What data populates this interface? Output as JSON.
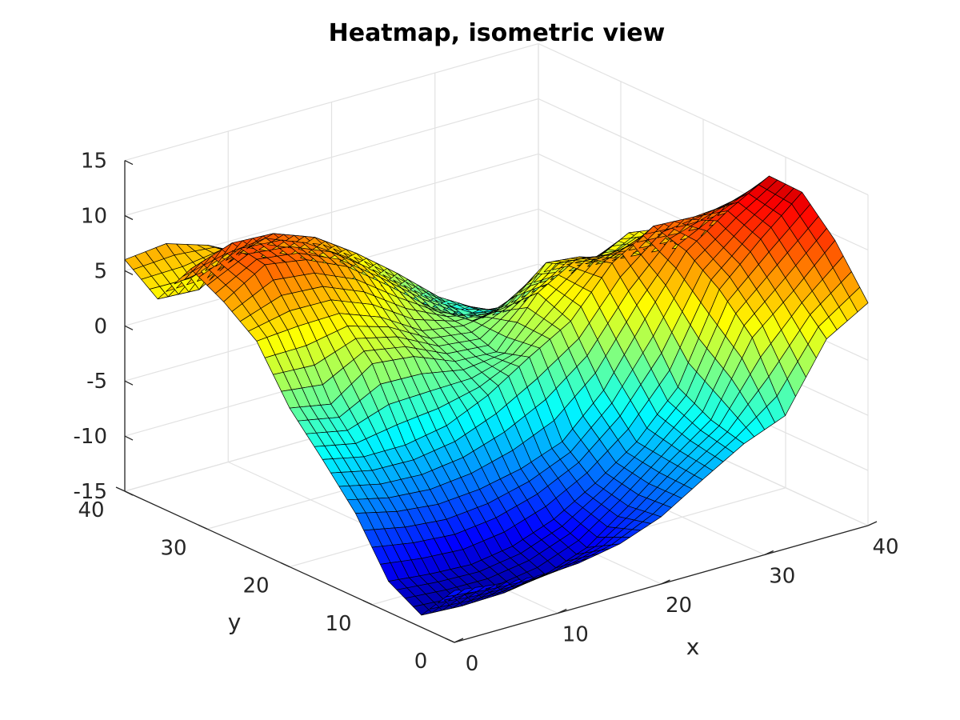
{
  "chart_data": {
    "type": "surface",
    "title": "Heatmap, isometric view",
    "xlabel": "x",
    "ylabel": "y",
    "zlabel": "",
    "xlim": [
      0,
      40
    ],
    "ylim": [
      0,
      40
    ],
    "zlim": [
      -15,
      15
    ],
    "xticks": [
      "0",
      "10",
      "20",
      "30",
      "40"
    ],
    "yticks": [
      "0",
      "10",
      "20",
      "30",
      "40"
    ],
    "zticks": [
      "-15",
      "-10",
      "-5",
      "0",
      "5",
      "10",
      "15"
    ],
    "colormap": "jet",
    "grid": true,
    "view": "isometric",
    "grid_step": 4,
    "x": [
      0,
      4,
      8,
      12,
      16,
      20,
      24,
      28,
      32,
      36,
      40
    ],
    "y": [
      0,
      4,
      8,
      12,
      16,
      20,
      24,
      28,
      32,
      36,
      40
    ],
    "z": [
      [
        -10.3,
        -10.8,
        -11.1,
        -11.0,
        -10.3,
        -8.9,
        -6.6,
        -4.4,
        -2.9,
        3.0,
        5.2
      ],
      [
        -13.9,
        -14.1,
        -14.0,
        -13.4,
        -12.0,
        -9.3,
        -6.3,
        -3.6,
        2.8,
        6.0,
        9.5
      ],
      [
        -12.2,
        -12.6,
        -12.8,
        -12.2,
        -10.8,
        -8.6,
        -5.9,
        -2.0,
        5.8,
        9.3,
        12.5
      ],
      [
        -7.4,
        -8.3,
        -8.7,
        -8.4,
        -7.6,
        -6.2,
        -2.6,
        2.8,
        7.9,
        10.5,
        12.6
      ],
      [
        -3.9,
        -4.7,
        -4.7,
        -4.0,
        -2.3,
        0.1,
        2.3,
        6.5,
        8.8,
        8.6,
        8.9
      ],
      [
        -0.6,
        -1.3,
        1.3,
        0.9,
        -0.6,
        -0.8,
        3.5,
        5.7,
        4.5,
        4.2,
        3.6
      ],
      [
        4.1,
        4.4,
        4.5,
        3.1,
        0.8,
        0.2,
        0.8,
        3.8,
        2.4,
        4.4,
        3.8
      ],
      [
        6.3,
        8.6,
        8.0,
        6.3,
        3.5,
        0.5,
        -1.8,
        -1.8,
        -0.2,
        0.6,
        0.2
      ],
      [
        7.9,
        9.2,
        9.0,
        7.6,
        5.1,
        2.2,
        -1.0,
        -3.2,
        -4.2,
        -4.8,
        -6.2
      ],
      [
        3.8,
        3.6,
        5.9,
        4.1,
        2.2,
        -1.4,
        -3.5,
        -5.8,
        -6.1,
        -8.3,
        -8.5
      ],
      [
        6.0,
        6.4,
        5.2,
        3.0,
        1.4,
        -3.0,
        -6.0,
        -8.8,
        -10.6,
        -10.1,
        -12.2
      ]
    ]
  }
}
